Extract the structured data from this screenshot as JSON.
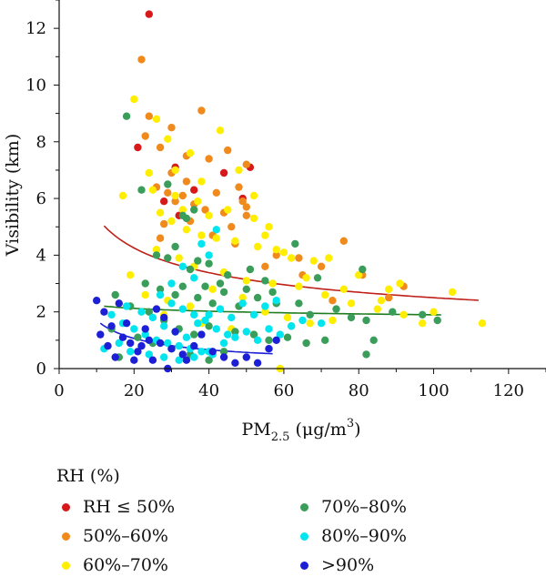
{
  "chart_data": {
    "type": "scatter",
    "xlabel": "PM",
    "xlabel_sub": "2.5",
    "xlabel_unit_open": " (μg/m",
    "xlabel_sup": "3",
    "xlabel_unit_close": ")",
    "ylabel": "Visibility (km)",
    "xlim": [
      0,
      130
    ],
    "ylim": [
      0,
      13
    ],
    "xticks": [
      "0",
      "20",
      "40",
      "60",
      "80",
      "100",
      "120"
    ],
    "yticks": [
      "0",
      "2",
      "4",
      "6",
      "8",
      "10",
      "12"
    ],
    "legend_title": "RH (%)",
    "legend_placement": "bottom",
    "grid": false,
    "series": [
      {
        "name": "RH ≤ 50%",
        "color": "#d7191c",
        "points": [
          [
            24,
            12.5
          ],
          [
            31,
            7.1
          ],
          [
            21,
            7.8
          ],
          [
            51,
            7.1
          ],
          [
            49,
            6.0
          ],
          [
            32,
            5.4
          ],
          [
            28,
            5.9
          ],
          [
            44,
            6.9
          ],
          [
            36,
            6.3
          ]
        ],
        "fit": null
      },
      {
        "name": "50%–60%",
        "color": "#f08a1c",
        "points": [
          [
            22,
            10.9
          ],
          [
            24,
            8.9
          ],
          [
            38,
            9.1
          ],
          [
            23,
            8.2
          ],
          [
            30,
            8.5
          ],
          [
            27,
            7.8
          ],
          [
            34,
            7.5
          ],
          [
            40,
            7.4
          ],
          [
            45,
            7.7
          ],
          [
            50,
            7.2
          ],
          [
            30,
            6.9
          ],
          [
            34,
            6.6
          ],
          [
            26,
            6.4
          ],
          [
            29,
            6.2
          ],
          [
            42,
            6.2
          ],
          [
            48,
            6.4
          ],
          [
            33,
            6.1
          ],
          [
            31,
            5.9
          ],
          [
            36,
            5.8
          ],
          [
            39,
            5.6
          ],
          [
            44,
            5.5
          ],
          [
            50,
            5.4
          ],
          [
            28,
            5.1
          ],
          [
            35,
            5.2
          ],
          [
            46,
            5.0
          ],
          [
            49,
            5.9
          ],
          [
            55,
            3.6
          ],
          [
            58,
            4.0
          ],
          [
            65,
            3.3
          ],
          [
            70,
            3.6
          ],
          [
            76,
            4.5
          ],
          [
            81,
            3.3
          ],
          [
            88,
            2.5
          ],
          [
            92,
            2.9
          ],
          [
            73,
            2.4
          ],
          [
            27,
            4.6
          ],
          [
            41,
            4.7
          ],
          [
            47,
            4.4
          ],
          [
            50,
            5.7
          ],
          [
            64,
            3.9
          ]
        ],
        "fit": {
          "a": 11.43,
          "b": -0.33,
          "from": 12,
          "to": 112
        }
      },
      {
        "name": "60%–70%",
        "color": "#ffee00",
        "points": [
          [
            20,
            9.5
          ],
          [
            26,
            8.8
          ],
          [
            29,
            8.1
          ],
          [
            35,
            7.6
          ],
          [
            43,
            8.4
          ],
          [
            17,
            6.1
          ],
          [
            25,
            6.3
          ],
          [
            31,
            6.1
          ],
          [
            33,
            5.6
          ],
          [
            37,
            5.9
          ],
          [
            40,
            5.4
          ],
          [
            45,
            5.6
          ],
          [
            52,
            5.3
          ],
          [
            56,
            5.0
          ],
          [
            27,
            5.5
          ],
          [
            30,
            5.2
          ],
          [
            34,
            4.9
          ],
          [
            38,
            4.7
          ],
          [
            42,
            4.6
          ],
          [
            47,
            4.5
          ],
          [
            53,
            4.3
          ],
          [
            58,
            4.2
          ],
          [
            62,
            3.9
          ],
          [
            68,
            3.8
          ],
          [
            72,
            3.9
          ],
          [
            80,
            3.3
          ],
          [
            91,
            3.0
          ],
          [
            105,
            2.7
          ],
          [
            113,
            1.6
          ],
          [
            26,
            4.2
          ],
          [
            32,
            3.9
          ],
          [
            36,
            3.6
          ],
          [
            44,
            3.4
          ],
          [
            50,
            3.1
          ],
          [
            57,
            3.0
          ],
          [
            64,
            2.9
          ],
          [
            71,
            2.6
          ],
          [
            76,
            2.8
          ],
          [
            86,
            2.4
          ],
          [
            100,
            2.0
          ],
          [
            19,
            3.3
          ],
          [
            23,
            2.6
          ],
          [
            29,
            2.4
          ],
          [
            35,
            2.2
          ],
          [
            41,
            2.8
          ],
          [
            49,
            2.5
          ],
          [
            55,
            2.0
          ],
          [
            61,
            1.8
          ],
          [
            67,
            1.6
          ],
          [
            73,
            1.7
          ],
          [
            85,
            2.1
          ],
          [
            97,
            1.6
          ],
          [
            28,
            1.9
          ],
          [
            38,
            1.6
          ],
          [
            46,
            1.4
          ],
          [
            52,
            1.2
          ],
          [
            59,
            0.0
          ],
          [
            31,
            7.0
          ],
          [
            24,
            6.9
          ],
          [
            38,
            6.6
          ],
          [
            48,
            7.0
          ],
          [
            52,
            6.1
          ],
          [
            55,
            4.7
          ],
          [
            60,
            4.1
          ],
          [
            66,
            3.2
          ],
          [
            78,
            2.3
          ],
          [
            88,
            2.8
          ],
          [
            92,
            1.9
          ]
        ],
        "fit": null
      },
      {
        "name": "70%–80%",
        "color": "#3a9e5a",
        "points": [
          [
            18,
            8.9
          ],
          [
            22,
            6.3
          ],
          [
            29,
            6.5
          ],
          [
            33,
            5.4
          ],
          [
            36,
            5.6
          ],
          [
            34,
            5.3
          ],
          [
            31,
            4.3
          ],
          [
            37,
            3.8
          ],
          [
            26,
            4.0
          ],
          [
            29,
            3.9
          ],
          [
            35,
            3.5
          ],
          [
            40,
            3.7
          ],
          [
            45,
            3.3
          ],
          [
            51,
            3.5
          ],
          [
            55,
            3.1
          ],
          [
            63,
            4.4
          ],
          [
            69,
            3.2
          ],
          [
            81,
            3.5
          ],
          [
            23,
            3.0
          ],
          [
            27,
            2.8
          ],
          [
            31,
            2.6
          ],
          [
            33,
            2.9
          ],
          [
            37,
            2.5
          ],
          [
            41,
            2.3
          ],
          [
            44,
            2.7
          ],
          [
            48,
            2.2
          ],
          [
            53,
            2.5
          ],
          [
            58,
            2.3
          ],
          [
            64,
            2.3
          ],
          [
            67,
            1.9
          ],
          [
            74,
            2.1
          ],
          [
            78,
            1.8
          ],
          [
            82,
            1.7
          ],
          [
            89,
            2.0
          ],
          [
            97,
            1.9
          ],
          [
            101,
            1.7
          ],
          [
            15,
            2.6
          ],
          [
            19,
            2.2
          ],
          [
            24,
            2.0
          ],
          [
            28,
            1.7
          ],
          [
            32,
            1.4
          ],
          [
            36,
            1.2
          ],
          [
            40,
            1.5
          ],
          [
            47,
            1.3
          ],
          [
            52,
            1.2
          ],
          [
            56,
            1.0
          ],
          [
            61,
            1.1
          ],
          [
            66,
            0.9
          ],
          [
            71,
            1.0
          ],
          [
            82,
            0.5
          ],
          [
            84,
            1.0
          ],
          [
            21,
            1.1
          ],
          [
            25,
            0.9
          ],
          [
            30,
            0.7
          ],
          [
            35,
            0.5
          ],
          [
            40,
            0.3
          ],
          [
            44,
            0.6
          ],
          [
            16,
            0.4
          ],
          [
            14,
            1.4
          ],
          [
            39,
            2.9
          ],
          [
            43,
            3.0
          ],
          [
            50,
            2.8
          ],
          [
            57,
            2.7
          ],
          [
            62,
            1.5
          ]
        ],
        "fit": {
          "a": 2.62,
          "b": -0.07,
          "from": 12,
          "to": 102
        }
      },
      {
        "name": "80%–90%",
        "color": "#00e5ee",
        "points": [
          [
            14,
            1.9
          ],
          [
            17,
            1.6
          ],
          [
            20,
            1.4
          ],
          [
            23,
            1.2
          ],
          [
            26,
            1.0
          ],
          [
            29,
            0.9
          ],
          [
            32,
            0.8
          ],
          [
            35,
            0.7
          ],
          [
            38,
            0.6
          ],
          [
            41,
            0.5
          ],
          [
            44,
            0.9
          ],
          [
            47,
            1.1
          ],
          [
            50,
            1.3
          ],
          [
            53,
            1.0
          ],
          [
            56,
            1.4
          ],
          [
            59,
            1.2
          ],
          [
            62,
            1.5
          ],
          [
            65,
            1.7
          ],
          [
            70,
            1.6
          ],
          [
            18,
            2.2
          ],
          [
            22,
            2.0
          ],
          [
            25,
            1.8
          ],
          [
            28,
            1.5
          ],
          [
            31,
            1.3
          ],
          [
            34,
            1.1
          ],
          [
            37,
            1.6
          ],
          [
            40,
            1.9
          ],
          [
            43,
            2.1
          ],
          [
            46,
            1.8
          ],
          [
            49,
            2.3
          ],
          [
            52,
            1.9
          ],
          [
            55,
            2.2
          ],
          [
            58,
            2.4
          ],
          [
            27,
            2.6
          ],
          [
            30,
            2.3
          ],
          [
            33,
            2.1
          ],
          [
            36,
            1.9
          ],
          [
            39,
            1.7
          ],
          [
            42,
            1.4
          ],
          [
            45,
            1.2
          ],
          [
            12,
            0.7
          ],
          [
            16,
            0.9
          ],
          [
            19,
            0.6
          ],
          [
            24,
            0.5
          ],
          [
            28,
            0.4
          ],
          [
            32,
            0.3
          ],
          [
            36,
            0.4
          ],
          [
            40,
            0.6
          ],
          [
            33,
            3.6
          ],
          [
            36,
            3.2
          ],
          [
            30,
            3.0
          ],
          [
            40,
            4.0
          ],
          [
            42,
            4.9
          ],
          [
            38,
            4.4
          ]
        ],
        "fit": null
      },
      {
        "name": ">90%",
        "color": "#1d1fd6",
        "points": [
          [
            10,
            2.4
          ],
          [
            12,
            2.0
          ],
          [
            14,
            1.5
          ],
          [
            11,
            1.2
          ],
          [
            13,
            0.8
          ],
          [
            15,
            0.4
          ],
          [
            17,
            1.1
          ],
          [
            19,
            0.9
          ],
          [
            21,
            0.6
          ],
          [
            23,
            1.4
          ],
          [
            25,
            0.3
          ],
          [
            27,
            0.9
          ],
          [
            30,
            0.7
          ],
          [
            33,
            0.5
          ],
          [
            36,
            0.8
          ],
          [
            38,
            1.2
          ],
          [
            41,
            0.6
          ],
          [
            44,
            0.4
          ],
          [
            47,
            0.2
          ],
          [
            50,
            0.4
          ],
          [
            53,
            0.2
          ],
          [
            56,
            0.7
          ],
          [
            58,
            1.0
          ],
          [
            18,
            1.6
          ],
          [
            20,
            0.3
          ],
          [
            22,
            0.8
          ],
          [
            28,
            1.8
          ],
          [
            31,
            1.3
          ],
          [
            34,
            0.3
          ],
          [
            26,
            2.1
          ],
          [
            16,
            2.3
          ],
          [
            24,
            1.0
          ],
          [
            29,
            0.0
          ]
        ],
        "fit": {
          "a": 8.16,
          "b": -0.68,
          "from": 11,
          "to": 57
        }
      }
    ]
  }
}
